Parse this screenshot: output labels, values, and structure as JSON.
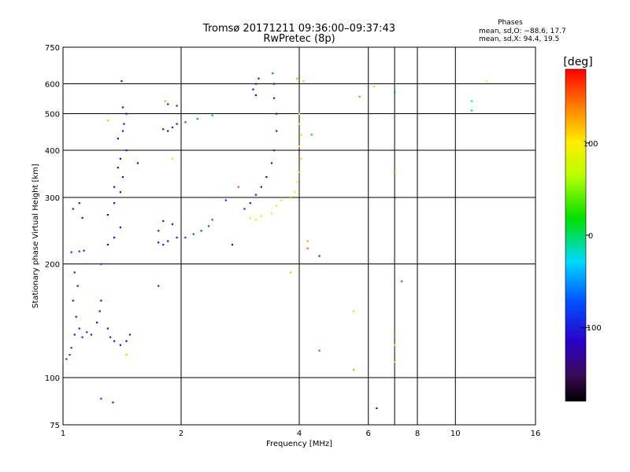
{
  "header": {
    "title_line1": "Tromsø 20171211 09:36:00–09:37:43",
    "title_line2": "RwPretec (8p)",
    "phase_title": "Phases",
    "phase_line1": "mean, sd,O: −88.6, 17.7",
    "phase_line2": "mean, sd,X:  94.4, 19.5"
  },
  "colorbar": {
    "unit_label": "[deg]",
    "min": -180,
    "max": 180,
    "ticks": [
      100,
      0,
      -100
    ],
    "tick_labels": [
      "100",
      "0",
      "−100"
    ]
  },
  "chart_data": {
    "type": "scatter",
    "title": "Tromsø 20171211 09:36:00–09:37:43",
    "subtitle": "RwPretec (8p)",
    "xlabel": "Frequency [MHz]",
    "ylabel": "Stationary phase Virtual Height [km]",
    "xscale": "log",
    "yscale": "log",
    "xlim": [
      1,
      16
    ],
    "ylim": [
      75,
      750
    ],
    "grid": true,
    "x_ticks": [
      1,
      2,
      4,
      6,
      8,
      10,
      16
    ],
    "x_tick_labels": [
      "1",
      "2",
      "4",
      "6",
      "8",
      "10",
      "16"
    ],
    "y_ticks": [
      75,
      100,
      200,
      300,
      400,
      500,
      600,
      750
    ],
    "y_tick_labels": [
      "75",
      "100",
      "200",
      "300",
      "400",
      "500",
      "600",
      "750"
    ],
    "x_grid": [
      1,
      2,
      4,
      6,
      7,
      8,
      10,
      16
    ],
    "y_grid": [
      75,
      100,
      200,
      300,
      400,
      500,
      600,
      750
    ],
    "points": [
      [
        1.02,
        112,
        -95
      ],
      [
        1.04,
        115,
        -90
      ],
      [
        1.05,
        120,
        -80
      ],
      [
        1.07,
        130,
        -100
      ],
      [
        1.08,
        145,
        -110
      ],
      [
        1.06,
        160,
        -100
      ],
      [
        1.09,
        175,
        -105
      ],
      [
        1.07,
        190,
        -100
      ],
      [
        1.1,
        135,
        -95
      ],
      [
        1.12,
        128,
        -100
      ],
      [
        1.15,
        132,
        -90
      ],
      [
        1.18,
        130,
        -100
      ],
      [
        1.22,
        140,
        -110
      ],
      [
        1.24,
        150,
        -110
      ],
      [
        1.25,
        160,
        -105
      ],
      [
        1.3,
        135,
        -110
      ],
      [
        1.32,
        128,
        -100
      ],
      [
        1.35,
        125,
        -110
      ],
      [
        1.4,
        122,
        -110
      ],
      [
        1.45,
        125,
        -115
      ],
      [
        1.48,
        130,
        -95
      ],
      [
        1.45,
        115,
        55
      ],
      [
        1.05,
        215,
        -95
      ],
      [
        1.1,
        216,
        -90
      ],
      [
        1.13,
        217,
        -100
      ],
      [
        1.06,
        280,
        -100
      ],
      [
        1.1,
        290,
        -105
      ],
      [
        1.12,
        265,
        -110
      ],
      [
        1.3,
        225,
        -110
      ],
      [
        1.35,
        235,
        -115
      ],
      [
        1.4,
        250,
        -110
      ],
      [
        1.3,
        270,
        -115
      ],
      [
        1.35,
        290,
        -110
      ],
      [
        1.4,
        310,
        -120
      ],
      [
        1.35,
        320,
        -110
      ],
      [
        1.42,
        340,
        -115
      ],
      [
        1.38,
        360,
        -120
      ],
      [
        1.4,
        380,
        -115
      ],
      [
        1.45,
        400,
        -110
      ],
      [
        1.38,
        430,
        -120
      ],
      [
        1.42,
        450,
        -110
      ],
      [
        1.43,
        470,
        -115
      ],
      [
        1.45,
        500,
        -120
      ],
      [
        1.42,
        520,
        -110
      ],
      [
        1.41,
        610,
        -110
      ],
      [
        1.3,
        480,
        120
      ],
      [
        1.25,
        200,
        -95
      ],
      [
        1.25,
        88,
        -80
      ],
      [
        1.34,
        86,
        -110
      ],
      [
        1.55,
        370,
        -110
      ],
      [
        1.75,
        228,
        -110
      ],
      [
        1.8,
        225,
        -105
      ],
      [
        1.85,
        230,
        -110
      ],
      [
        1.95,
        235,
        -100
      ],
      [
        1.75,
        245,
        -105
      ],
      [
        1.8,
        260,
        -110
      ],
      [
        1.9,
        255,
        -110
      ],
      [
        1.8,
        455,
        -105
      ],
      [
        1.85,
        450,
        -110
      ],
      [
        1.9,
        460,
        -100
      ],
      [
        1.95,
        470,
        -110
      ],
      [
        1.85,
        530,
        -100
      ],
      [
        1.95,
        525,
        -95
      ],
      [
        1.82,
        540,
        130
      ],
      [
        1.9,
        380,
        90
      ],
      [
        1.75,
        175,
        -95
      ],
      [
        2.05,
        235,
        -80
      ],
      [
        2.15,
        240,
        -75
      ],
      [
        2.25,
        245,
        -75
      ],
      [
        2.35,
        252,
        -70
      ],
      [
        2.4,
        262,
        -70
      ],
      [
        2.05,
        475,
        -70
      ],
      [
        2.2,
        485,
        -60
      ],
      [
        2.4,
        495,
        -50
      ],
      [
        2.6,
        295,
        -85
      ],
      [
        2.7,
        225,
        -150
      ],
      [
        2.8,
        320,
        155
      ],
      [
        2.9,
        280,
        -100
      ],
      [
        3.0,
        290,
        -110
      ],
      [
        3.1,
        305,
        -105
      ],
      [
        3.2,
        320,
        -110
      ],
      [
        3.3,
        340,
        -115
      ],
      [
        3.4,
        370,
        -110
      ],
      [
        3.45,
        400,
        -100
      ],
      [
        3.5,
        450,
        -100
      ],
      [
        3.5,
        500,
        -110
      ],
      [
        3.45,
        550,
        -100
      ],
      [
        3.45,
        600,
        -105
      ],
      [
        3.42,
        640,
        -60
      ],
      [
        3.05,
        580,
        -110
      ],
      [
        3.1,
        600,
        -105
      ],
      [
        3.15,
        620,
        -110
      ],
      [
        3.1,
        560,
        -115
      ],
      [
        3.0,
        265,
        80
      ],
      [
        3.1,
        262,
        75
      ],
      [
        3.2,
        268,
        85
      ],
      [
        3.4,
        272,
        80
      ],
      [
        3.5,
        285,
        90
      ],
      [
        3.6,
        295,
        70
      ],
      [
        3.8,
        300,
        40
      ],
      [
        3.9,
        310,
        95
      ],
      [
        3.95,
        330,
        100
      ],
      [
        4.0,
        350,
        110
      ],
      [
        4.05,
        380,
        105
      ],
      [
        4.0,
        410,
        100
      ],
      [
        4.05,
        440,
        110
      ],
      [
        4.0,
        470,
        105
      ],
      [
        4.0,
        500,
        100
      ],
      [
        3.95,
        620,
        130
      ],
      [
        4.1,
        610,
        120
      ],
      [
        4.3,
        440,
        20
      ],
      [
        4.2,
        230,
        130
      ],
      [
        4.2,
        220,
        150
      ],
      [
        4.5,
        210,
        -90
      ],
      [
        3.8,
        190,
        120
      ],
      [
        4.5,
        118,
        160
      ],
      [
        5.7,
        555,
        140
      ],
      [
        6.2,
        590,
        110
      ],
      [
        5.5,
        150,
        110
      ],
      [
        5.5,
        105,
        130
      ],
      [
        6.3,
        83,
        -140
      ],
      [
        7.0,
        570,
        -60
      ],
      [
        7.0,
        350,
        140
      ],
      [
        7.0,
        300,
        -100
      ],
      [
        7.0,
        130,
        140
      ],
      [
        7.0,
        122,
        110
      ],
      [
        7.0,
        110,
        115
      ],
      [
        7.3,
        180,
        -60
      ],
      [
        11.0,
        540,
        -20
      ],
      [
        11.0,
        510,
        0
      ],
      [
        12.0,
        610,
        100
      ]
    ]
  }
}
